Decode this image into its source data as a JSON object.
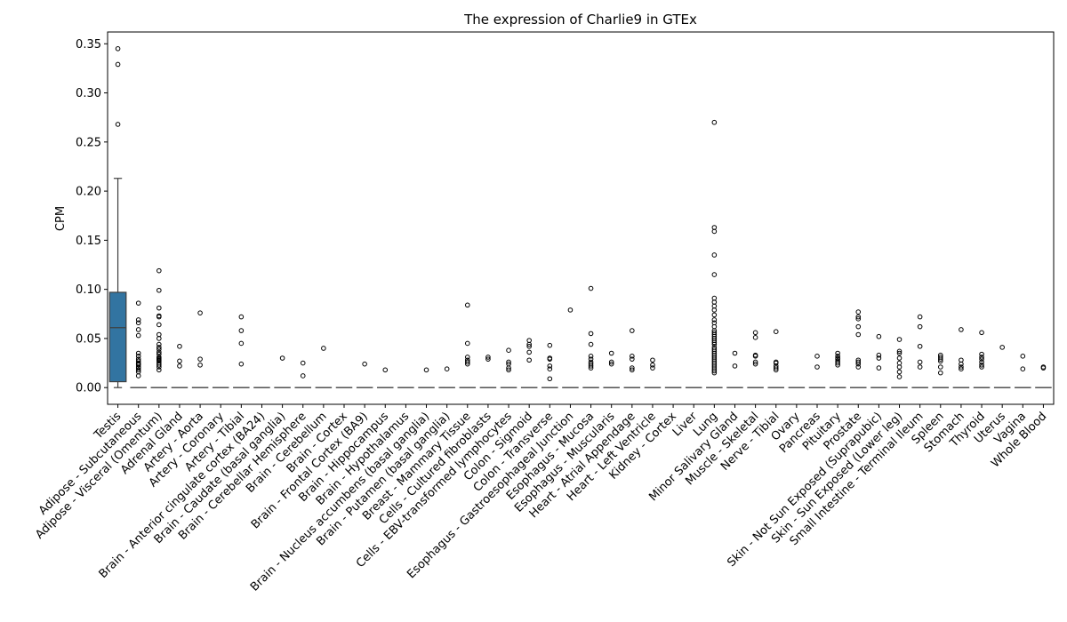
{
  "chart_data": {
    "type": "box",
    "title": "The expression of Charlie9 in GTEx",
    "xlabel": "",
    "ylabel": "CPM",
    "ylim": [
      -0.017,
      0.362
    ],
    "yticks": [
      "0.00",
      "0.05",
      "0.10",
      "0.15",
      "0.20",
      "0.25",
      "0.30",
      "0.35"
    ],
    "box_color": "#3274a1",
    "categories": [
      "Testis",
      "Adipose - Subcutaneous",
      "Adipose - Visceral (Omentum)",
      "Adrenal Gland",
      "Artery - Aorta",
      "Artery - Coronary",
      "Artery - Tibial",
      "Brain - Anterior cingulate cortex (BA24)",
      "Brain - Caudate (basal ganglia)",
      "Brain - Cerebellar Hemisphere",
      "Brain - Cerebellum",
      "Brain - Cortex",
      "Brain - Frontal Cortex (BA9)",
      "Brain - Hippocampus",
      "Brain - Hypothalamus",
      "Brain - Nucleus accumbens (basal ganglia)",
      "Brain - Putamen (basal ganglia)",
      "Breast - Mammary Tissue",
      "Cells - Cultured fibroblasts",
      "Cells - EBV-transformed lymphocytes",
      "Colon - Sigmoid",
      "Colon - Transverse",
      "Esophagus - Gastroesophageal Junction",
      "Esophagus - Mucosa",
      "Esophagus - Muscularis",
      "Heart - Atrial Appendage",
      "Heart - Left Ventricle",
      "Kidney - Cortex",
      "Liver",
      "Lung",
      "Minor Salivary Gland",
      "Muscle - Skeletal",
      "Nerve - Tibial",
      "Ovary",
      "Pancreas",
      "Pituitary",
      "Prostate",
      "Skin - Not Sun Exposed (Suprapubic)",
      "Skin - Sun Exposed (Lower leg)",
      "Small Intestine - Terminal Ileum",
      "Spleen",
      "Stomach",
      "Thyroid",
      "Uterus",
      "Vagina",
      "Whole Blood"
    ],
    "boxes": [
      {
        "q1": 0.006,
        "median": 0.061,
        "q3": 0.097,
        "whisker_low": 0.0,
        "whisker_high": 0.213,
        "outliers": [
          0.345,
          0.329,
          0.268
        ]
      }
    ],
    "zero_boxes_value": 0.0,
    "outliers": [
      [],
      [
        0.086,
        0.069,
        0.066,
        0.059,
        0.053,
        0.035,
        0.032,
        0.029,
        0.027,
        0.025,
        0.024,
        0.023,
        0.021,
        0.02,
        0.018,
        0.016,
        0.012
      ],
      [
        0.119,
        0.099,
        0.081,
        0.073,
        0.072,
        0.064,
        0.054,
        0.05,
        0.044,
        0.041,
        0.039,
        0.036,
        0.034,
        0.031,
        0.03,
        0.029,
        0.028,
        0.027,
        0.025,
        0.023,
        0.021,
        0.018
      ],
      [
        0.042,
        0.027,
        0.022
      ],
      [
        0.076,
        0.029,
        0.023
      ],
      [],
      [
        0.072,
        0.058,
        0.045,
        0.024
      ],
      [],
      [
        0.03
      ],
      [
        0.025,
        0.012
      ],
      [
        0.04
      ],
      [],
      [
        0.024
      ],
      [
        0.018
      ],
      [],
      [
        0.018
      ],
      [
        0.019
      ],
      [
        0.084,
        0.045,
        0.031,
        0.028,
        0.026,
        0.024
      ],
      [
        0.031,
        0.029
      ],
      [
        0.038,
        0.026,
        0.024,
        0.02,
        0.018
      ],
      [
        0.048,
        0.044,
        0.042,
        0.036,
        0.028
      ],
      [
        0.043,
        0.03,
        0.029,
        0.022,
        0.019,
        0.009
      ],
      [
        0.079
      ],
      [
        0.101,
        0.055,
        0.044,
        0.032,
        0.029,
        0.026,
        0.024,
        0.022,
        0.02
      ],
      [
        0.035,
        0.026,
        0.024
      ],
      [
        0.058,
        0.032,
        0.029,
        0.02,
        0.018
      ],
      [
        0.028,
        0.023,
        0.02
      ],
      [],
      [],
      [
        0.27,
        0.163,
        0.159,
        0.135,
        0.115,
        0.091,
        0.087,
        0.083,
        0.079,
        0.074,
        0.069,
        0.066,
        0.062,
        0.058,
        0.056,
        0.054,
        0.052,
        0.05,
        0.048,
        0.046,
        0.044,
        0.041,
        0.039,
        0.037,
        0.035,
        0.033,
        0.031,
        0.029,
        0.027,
        0.025,
        0.023,
        0.021,
        0.019,
        0.017,
        0.015
      ],
      [
        0.035,
        0.022
      ],
      [
        0.056,
        0.051,
        0.033,
        0.032,
        0.026,
        0.024
      ],
      [
        0.057,
        0.026,
        0.025,
        0.022,
        0.02,
        0.018
      ],
      [],
      [
        0.032,
        0.021
      ],
      [
        0.035,
        0.032,
        0.03,
        0.029,
        0.027,
        0.025,
        0.023
      ],
      [
        0.077,
        0.072,
        0.07,
        0.062,
        0.054,
        0.028,
        0.026,
        0.024,
        0.021
      ],
      [
        0.052,
        0.033,
        0.03,
        0.02
      ],
      [
        0.049,
        0.037,
        0.035,
        0.03,
        0.025,
        0.021,
        0.016,
        0.011
      ],
      [
        0.072,
        0.062,
        0.042,
        0.026,
        0.021
      ],
      [
        0.033,
        0.031,
        0.029,
        0.027,
        0.021,
        0.015
      ],
      [
        0.059,
        0.028,
        0.024,
        0.021,
        0.019
      ],
      [
        0.056,
        0.034,
        0.031,
        0.029,
        0.026,
        0.023,
        0.021
      ],
      [
        0.041
      ],
      [
        0.032,
        0.019
      ],
      [
        0.021,
        0.02
      ]
    ]
  }
}
